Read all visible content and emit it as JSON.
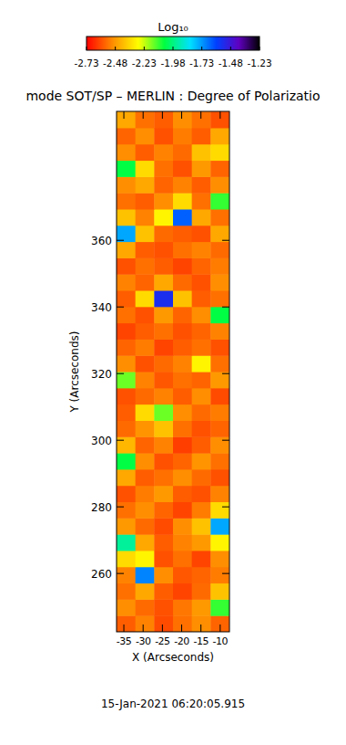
{
  "chart_data": {
    "type": "heatmap",
    "title": "mode SOT/SP – MERLIN : Degree of Polarizatio",
    "xlabel": "X (Arcseconds)",
    "ylabel": "Y (Arcseconds)",
    "annotation": "15-Jan-2021 06:20:05.915",
    "xlim": [
      -36.9,
      -7.6
    ],
    "ylim": [
      242.5,
      398.7
    ],
    "xticks": [
      -35,
      -30,
      -25,
      -20,
      -15,
      -10
    ],
    "yticks": [
      260,
      280,
      300,
      320,
      340,
      360
    ],
    "x": [
      -34.46,
      -29.58,
      -24.69,
      -19.81,
      -14.93,
      -10.04
    ],
    "y": [
      244.94,
      249.82,
      254.7,
      259.58,
      264.46,
      269.34,
      274.22,
      279.1,
      283.98,
      288.86,
      293.74,
      298.62,
      303.5,
      308.38,
      313.26,
      318.14,
      323.02,
      327.9,
      332.78,
      337.66,
      342.54,
      347.42,
      352.3,
      357.18,
      362.06,
      366.94,
      371.82,
      376.7,
      381.58,
      386.46,
      391.34,
      396.22
    ],
    "values": [
      [
        -2.58,
        -2.52,
        -2.61,
        -2.55,
        -2.5,
        -2.57
      ],
      [
        -2.5,
        -2.56,
        -2.6,
        -2.54,
        -2.48,
        -2.1
      ],
      [
        -2.55,
        -2.45,
        -2.58,
        -2.62,
        -2.56,
        -2.4
      ],
      [
        -2.52,
        -1.7,
        -2.5,
        -2.59,
        -2.57,
        -2.53
      ],
      [
        -2.35,
        -2.3,
        -2.6,
        -2.55,
        -2.62,
        -2.5
      ],
      [
        -1.95,
        -2.45,
        -2.58,
        -2.52,
        -2.48,
        -2.3
      ],
      [
        -2.48,
        -2.56,
        -2.61,
        -2.5,
        -2.4,
        -1.75
      ],
      [
        -2.55,
        -2.5,
        -2.57,
        -2.62,
        -2.53,
        -2.35
      ],
      [
        -2.6,
        -2.53,
        -2.48,
        -2.58,
        -2.6,
        -2.52
      ],
      [
        -2.45,
        -2.58,
        -2.55,
        -2.5,
        -2.56,
        -2.6
      ],
      [
        -2.05,
        -2.5,
        -2.6,
        -2.57,
        -2.49,
        -2.55
      ],
      [
        -2.42,
        -2.57,
        -2.52,
        -2.63,
        -2.58,
        -2.5
      ],
      [
        -2.56,
        -2.49,
        -2.4,
        -2.55,
        -2.6,
        -2.57
      ],
      [
        -2.58,
        -2.35,
        -2.15,
        -2.5,
        -2.56,
        -2.53
      ],
      [
        -2.6,
        -2.56,
        -2.52,
        -2.58,
        -2.5,
        -2.61
      ],
      [
        -2.15,
        -2.52,
        -2.59,
        -2.55,
        -2.57,
        -2.48
      ],
      [
        -2.5,
        -2.6,
        -2.56,
        -2.52,
        -2.3,
        -2.55
      ],
      [
        -2.57,
        -2.53,
        -2.62,
        -2.58,
        -2.55,
        -2.6
      ],
      [
        -2.62,
        -2.58,
        -2.55,
        -2.6,
        -2.57,
        -2.52
      ],
      [
        -2.55,
        -2.6,
        -2.48,
        -2.57,
        -2.5,
        -2.05
      ],
      [
        -2.58,
        -2.35,
        -1.55,
        -2.4,
        -2.58,
        -2.55
      ],
      [
        -2.52,
        -2.57,
        -2.45,
        -2.56,
        -2.6,
        -2.5
      ],
      [
        -2.6,
        -2.55,
        -2.58,
        -2.62,
        -2.57,
        -2.53
      ],
      [
        -2.45,
        -2.58,
        -2.6,
        -2.55,
        -2.52,
        -2.56
      ],
      [
        -1.75,
        -2.4,
        -2.56,
        -2.58,
        -2.6,
        -2.45
      ],
      [
        -2.4,
        -2.52,
        -2.3,
        -1.65,
        -2.45,
        -2.55
      ],
      [
        -2.55,
        -2.58,
        -2.5,
        -2.35,
        -2.55,
        -2.1
      ],
      [
        -2.5,
        -2.45,
        -2.57,
        -2.52,
        -2.58,
        -2.5
      ],
      [
        -2.05,
        -2.35,
        -2.55,
        -2.6,
        -2.48,
        -2.57
      ],
      [
        -2.5,
        -2.58,
        -2.52,
        -2.56,
        -2.4,
        -2.35
      ],
      [
        -2.57,
        -2.5,
        -2.6,
        -2.53,
        -2.58,
        -2.45
      ],
      [
        -2.45,
        -2.55,
        -2.58,
        -2.5,
        -2.55,
        -2.6
      ]
    ],
    "colorbar": {
      "label": "Log₁₀",
      "range": [
        -2.73,
        -1.23
      ],
      "ticks": [
        -2.73,
        -2.48,
        -2.23,
        -1.98,
        -1.73,
        -1.48,
        -1.23
      ]
    }
  }
}
